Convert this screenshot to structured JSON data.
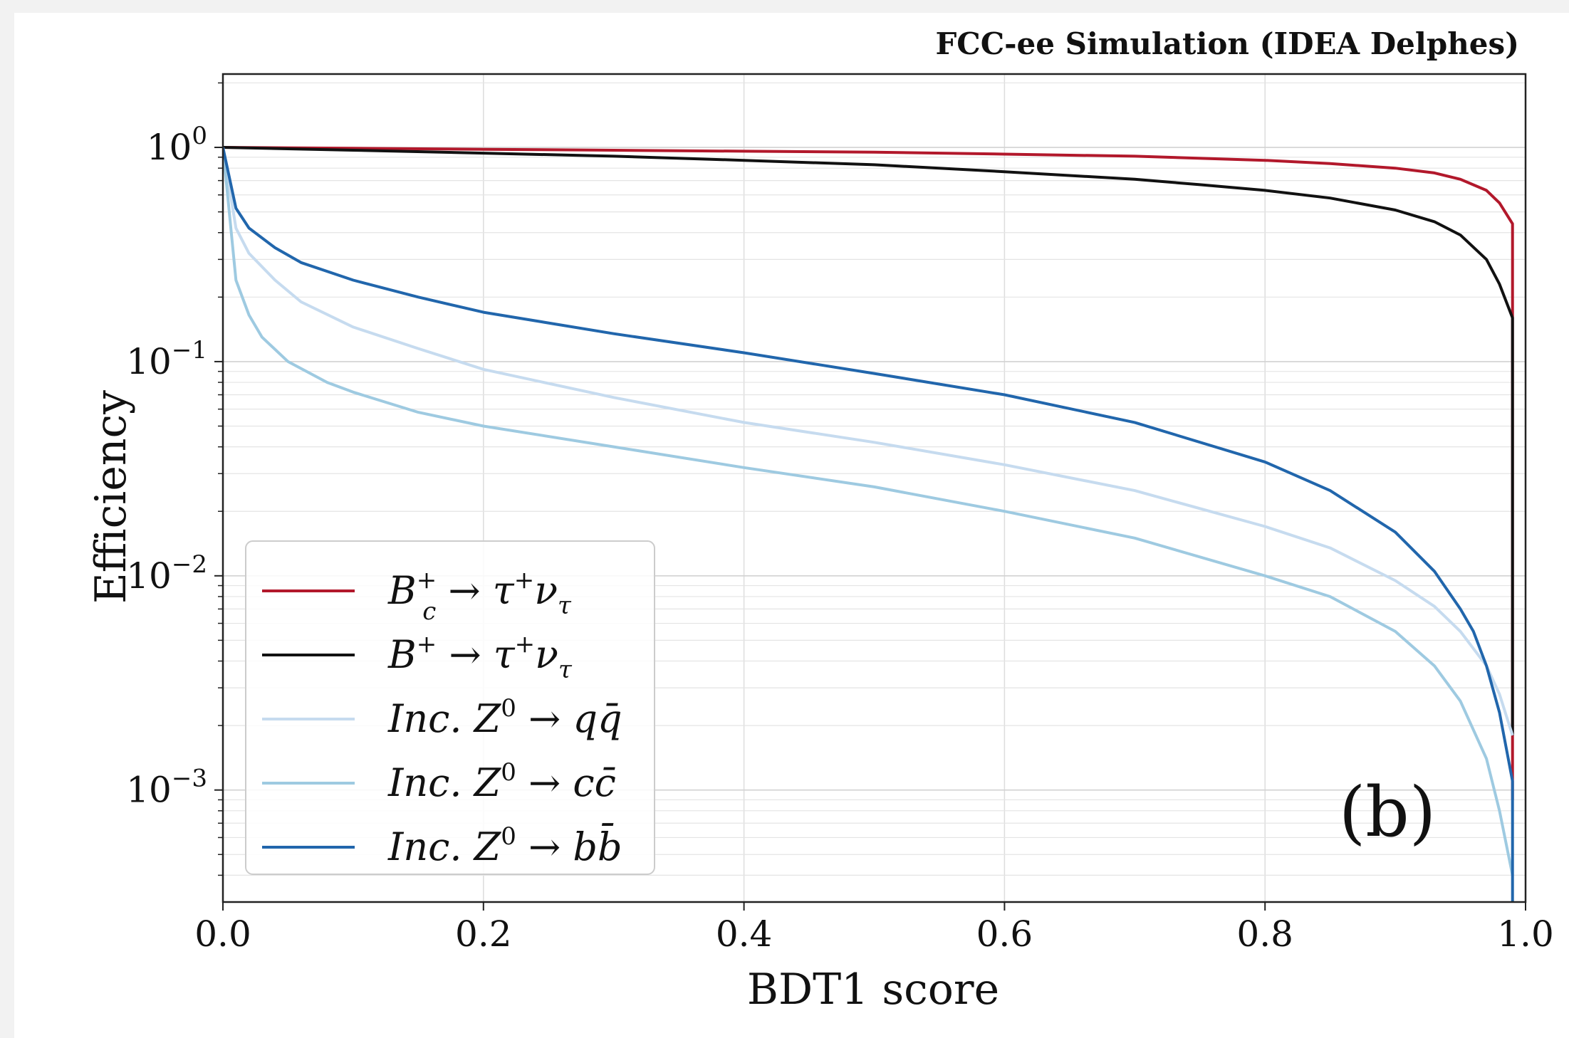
{
  "chart_data": {
    "type": "line",
    "title": "FCC-ee Simulation (IDEA Delphes)",
    "panel_label": "(b)",
    "xlabel": "BDT1 score",
    "ylabel": "Efficiency",
    "xlim": [
      0.0,
      1.0
    ],
    "ylim": [
      0.0003,
      2.2
    ],
    "yscale": "log",
    "grid": true,
    "legend_position": "lower-left",
    "x_ticks": [
      {
        "value": 0.0,
        "label": "0.0"
      },
      {
        "value": 0.2,
        "label": "0.2"
      },
      {
        "value": 0.4,
        "label": "0.4"
      },
      {
        "value": 0.6,
        "label": "0.6"
      },
      {
        "value": 0.8,
        "label": "0.8"
      },
      {
        "value": 1.0,
        "label": "1.0"
      }
    ],
    "y_ticks": [
      {
        "value": 1,
        "base": "10",
        "exp": "0"
      },
      {
        "value": 0.1,
        "base": "10",
        "exp": "−1"
      },
      {
        "value": 0.01,
        "base": "10",
        "exp": "−2"
      },
      {
        "value": 0.001,
        "base": "10",
        "exp": "−3"
      }
    ],
    "series": [
      {
        "name": "B_c^+ → τ^+ ν_τ",
        "legend": {
          "p1": "B",
          "sup": "+",
          "sub": "c",
          "p2": " → τ",
          "sup2": "+",
          "p3": "ν",
          "sub2": "τ"
        },
        "color": "#b2182b",
        "x": [
          0,
          0.1,
          0.2,
          0.3,
          0.4,
          0.5,
          0.6,
          0.7,
          0.8,
          0.85,
          0.9,
          0.93,
          0.95,
          0.97,
          0.98,
          0.99,
          0.99,
          0.99
        ],
        "y": [
          1.0,
          0.99,
          0.98,
          0.97,
          0.96,
          0.95,
          0.93,
          0.91,
          0.87,
          0.84,
          0.8,
          0.76,
          0.71,
          0.63,
          0.55,
          0.44,
          0.15,
          0.0009
        ]
      },
      {
        "name": "B^+ → τ^+ ν_τ",
        "legend": {
          "p1": "B",
          "sup": "+",
          "sub": "",
          "p2": " → τ",
          "sup2": "+",
          "p3": "ν",
          "sub2": "τ"
        },
        "color": "#111111",
        "x": [
          0,
          0.1,
          0.2,
          0.3,
          0.4,
          0.5,
          0.6,
          0.7,
          0.75,
          0.8,
          0.85,
          0.9,
          0.93,
          0.95,
          0.97,
          0.98,
          0.99,
          0.99
        ],
        "y": [
          1.0,
          0.97,
          0.94,
          0.91,
          0.87,
          0.83,
          0.77,
          0.71,
          0.67,
          0.63,
          0.58,
          0.51,
          0.45,
          0.39,
          0.3,
          0.23,
          0.16,
          0.0018
        ]
      },
      {
        "name": "Inc. Z^0 → q q̄",
        "legend": {
          "p1": "Inc.  Z",
          "sup": "0",
          "sub": "",
          "p2": " → qq̄",
          "sup2": "",
          "p3": "",
          "sub2": ""
        },
        "color": "#c6dbef",
        "x": [
          0,
          0.01,
          0.02,
          0.04,
          0.06,
          0.1,
          0.15,
          0.2,
          0.3,
          0.4,
          0.5,
          0.6,
          0.7,
          0.8,
          0.85,
          0.9,
          0.93,
          0.95,
          0.97,
          0.98,
          0.99
        ],
        "y": [
          1.0,
          0.42,
          0.32,
          0.24,
          0.19,
          0.145,
          0.115,
          0.092,
          0.068,
          0.052,
          0.042,
          0.033,
          0.025,
          0.017,
          0.0135,
          0.0095,
          0.0072,
          0.0055,
          0.0038,
          0.0028,
          0.0018
        ]
      },
      {
        "name": "Inc. Z^0 → c c̄",
        "legend": {
          "p1": "Inc.  Z",
          "sup": "0",
          "sub": "",
          "p2": " → cc̄",
          "sup2": "",
          "p3": "",
          "sub2": ""
        },
        "color": "#9ecae1",
        "x": [
          0,
          0.01,
          0.02,
          0.03,
          0.05,
          0.08,
          0.1,
          0.15,
          0.2,
          0.3,
          0.4,
          0.5,
          0.6,
          0.7,
          0.8,
          0.85,
          0.9,
          0.93,
          0.95,
          0.97,
          0.98,
          0.99
        ],
        "y": [
          1.0,
          0.24,
          0.165,
          0.13,
          0.1,
          0.08,
          0.072,
          0.058,
          0.05,
          0.04,
          0.032,
          0.026,
          0.02,
          0.015,
          0.01,
          0.008,
          0.0055,
          0.0038,
          0.0026,
          0.0014,
          0.0008,
          0.0004
        ]
      },
      {
        "name": "Inc. Z^0 → b b̄",
        "legend": {
          "p1": "Inc.  Z",
          "sup": "0",
          "sub": "",
          "p2": " → bb̄",
          "sup2": "",
          "p3": "",
          "sub2": ""
        },
        "color": "#2166ac",
        "x": [
          0,
          0.01,
          0.02,
          0.04,
          0.06,
          0.1,
          0.15,
          0.2,
          0.3,
          0.4,
          0.5,
          0.6,
          0.7,
          0.8,
          0.85,
          0.9,
          0.93,
          0.95,
          0.96,
          0.97,
          0.98,
          0.99,
          0.99
        ],
        "y": [
          1.0,
          0.52,
          0.42,
          0.34,
          0.29,
          0.24,
          0.2,
          0.17,
          0.135,
          0.11,
          0.088,
          0.07,
          0.052,
          0.034,
          0.025,
          0.016,
          0.0105,
          0.007,
          0.0055,
          0.0038,
          0.0023,
          0.0011,
          0.0003
        ]
      }
    ]
  }
}
